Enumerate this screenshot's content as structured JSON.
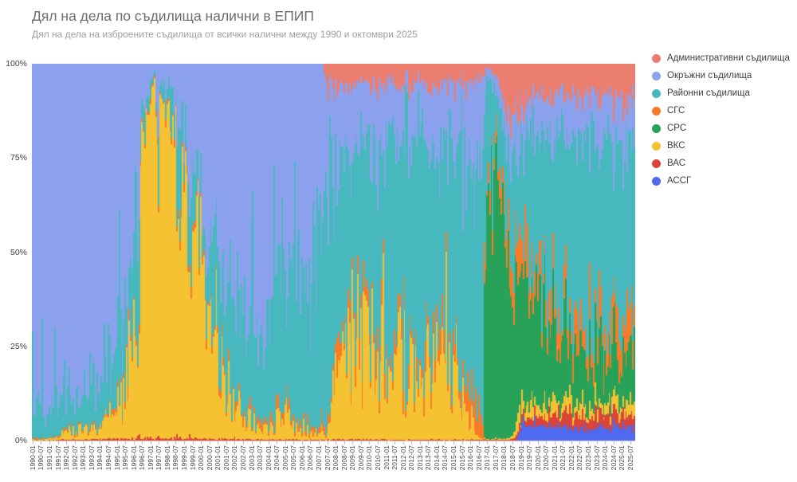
{
  "header": {
    "title": "Дял на дела по съдилища налични в ЕПИП",
    "subtitle": "Дял на дела на изброените съдилища от всички налични между 1990 и октомври 2025"
  },
  "chart_data": {
    "type": "area",
    "variant": "100%-stacked-monthly-bars",
    "title": "Дял на дела по съдилища налични в ЕПИП",
    "subtitle": "Дял на дела на изброените съдилища от всички налични между 1990 и октомври 2025",
    "x_range": [
      "1990-01",
      "2025-10"
    ],
    "n_months": 430,
    "sample_interval_months": 6,
    "grid": false,
    "legend_position": "right",
    "y_ticks": [
      "0%",
      "25%",
      "50%",
      "75%",
      "100%"
    ],
    "ylim": [
      0,
      100
    ],
    "x_tick_labels": [
      "1990-01",
      "1990-07",
      "1991-01",
      "1991-07",
      "1992-01",
      "1992-07",
      "1993-01",
      "1993-07",
      "1994-01",
      "1994-07",
      "1995-01",
      "1995-07",
      "1996-01",
      "1996-07",
      "1997-01",
      "1997-07",
      "1998-01",
      "1998-07",
      "1999-01",
      "1999-07",
      "2000-01",
      "2000-07",
      "2001-01",
      "2001-07",
      "2002-01",
      "2002-07",
      "2003-01",
      "2003-07",
      "2004-01",
      "2004-07",
      "2005-01",
      "2005-07",
      "2006-01",
      "2006-07",
      "2007-01",
      "2007-07",
      "2008-01",
      "2008-07",
      "2009-01",
      "2009-07",
      "2010-01",
      "2010-07",
      "2011-01",
      "2011-07",
      "2012-01",
      "2012-07",
      "2013-01",
      "2013-07",
      "2014-01",
      "2014-07",
      "2015-01",
      "2015-07",
      "2016-01",
      "2016-07",
      "2017-01",
      "2017-07",
      "2018-01",
      "2018-07",
      "2019-01",
      "2019-07",
      "2020-01",
      "2020-07",
      "2021-01",
      "2021-07",
      "2022-01",
      "2022-07",
      "2023-01",
      "2023-07",
      "2024-01",
      "2024-07",
      "2025-01",
      "2025-07"
    ],
    "stack_order_bottom_to_top": [
      "АССГ",
      "ВАС",
      "ВКС",
      "СРС",
      "СГС",
      "Районни съдилища",
      "Окръжни съдилища",
      "Административни съдилища"
    ],
    "series": [
      {
        "name": "Административни съдилища",
        "color": "#ec7e70",
        "values_pct": [
          0,
          0,
          0,
          0,
          0,
          0,
          0,
          0,
          0,
          0,
          0,
          0,
          0,
          0,
          0,
          0,
          0,
          0,
          0,
          0,
          0,
          0,
          0,
          0,
          0,
          0,
          0,
          0,
          0,
          0,
          0,
          0,
          0,
          0,
          0,
          7,
          6,
          6.5,
          6,
          6,
          6,
          6,
          5.5,
          5.5,
          6,
          6,
          5.5,
          5.5,
          5.5,
          5.5,
          5,
          5,
          4.5,
          4,
          1,
          3,
          12,
          13,
          10,
          9,
          8.5,
          8.5,
          8.5,
          8.5,
          8.5,
          8.5,
          8.5,
          8.5,
          9,
          9,
          9,
          9
        ]
      },
      {
        "name": "Окръжни съдилища",
        "color": "#8ba1ee",
        "values_pct": [
          90,
          91,
          92,
          90,
          88,
          89,
          86,
          85,
          84,
          82,
          76,
          66,
          52,
          16,
          4,
          8,
          6,
          11,
          16,
          26,
          40,
          47,
          50,
          56,
          55,
          60,
          58,
          64,
          62,
          57,
          58,
          55,
          56,
          58,
          46,
          32,
          20,
          19,
          18,
          17,
          16,
          16,
          15,
          15,
          16,
          16,
          15,
          15,
          14,
          15,
          16,
          18,
          20,
          23,
          2,
          4,
          8,
          8,
          9,
          10,
          11,
          11,
          11,
          11,
          11,
          11,
          11,
          11,
          11,
          11.5,
          12,
          12
        ]
      },
      {
        "name": "Районни съдилища",
        "color": "#47b9be",
        "values_pct": [
          8,
          7,
          6,
          8,
          9,
          8,
          11,
          11,
          12,
          13,
          14,
          18,
          20,
          7,
          3,
          5,
          5,
          8,
          10,
          13,
          20,
          26,
          26,
          30,
          36,
          32,
          37,
          31,
          33,
          36,
          31,
          39,
          40,
          38,
          50,
          59,
          48,
          50,
          44,
          43,
          50,
          52,
          57,
          58,
          56,
          54,
          53,
          54,
          57,
          55,
          57,
          57,
          62,
          64,
          33,
          14,
          18,
          24,
          31,
          36,
          42,
          46,
          48,
          50,
          52,
          53,
          53,
          54,
          54,
          54,
          53,
          51
        ]
      },
      {
        "name": "СГС",
        "color": "#fa7b27",
        "values_pct": [
          0.3,
          0.3,
          0.3,
          0.4,
          0.5,
          0.5,
          0.6,
          0.6,
          0.7,
          0.8,
          1,
          1.2,
          1.5,
          1,
          1,
          1,
          1,
          1.2,
          1.5,
          1.5,
          1.5,
          1.5,
          1.5,
          1.5,
          1.5,
          1.5,
          1.5,
          1.5,
          1.5,
          2,
          2,
          2,
          1.5,
          1.5,
          1.5,
          1.5,
          4,
          4.5,
          5,
          5.5,
          4.5,
          4,
          4,
          4,
          4.5,
          5,
          5,
          4.5,
          4.5,
          4.5,
          5,
          5.5,
          8,
          7,
          5,
          4,
          6,
          8,
          9,
          8,
          7.5,
          7,
          7,
          7,
          7,
          7,
          7,
          7,
          7,
          7.5,
          8,
          11
        ]
      },
      {
        "name": "СРС",
        "color": "#28a258",
        "values_pct": [
          0,
          0,
          0,
          0,
          0,
          0,
          0,
          0,
          0,
          0,
          0,
          0,
          0,
          0,
          0,
          0,
          0,
          0,
          0,
          0,
          0,
          0,
          0,
          0,
          0,
          0,
          0,
          0,
          0,
          0,
          0,
          0,
          0,
          0,
          0,
          0,
          0,
          0,
          0,
          0,
          0,
          0,
          0,
          0,
          0,
          0,
          0,
          0,
          0,
          0,
          0,
          0,
          0,
          0,
          58,
          75,
          60,
          45,
          37,
          32,
          27,
          24,
          22,
          20,
          17,
          15,
          14.5,
          14,
          13.5,
          13,
          12.5,
          12
        ]
      },
      {
        "name": "ВКС",
        "color": "#f5c231",
        "values_pct": [
          0.2,
          0.2,
          0.3,
          0.5,
          1.5,
          2,
          2.5,
          2.5,
          3,
          3.5,
          8,
          14,
          26,
          76,
          91,
          85,
          87,
          79,
          71,
          59,
          37,
          24,
          21,
          11,
          7,
          5.5,
          3.5,
          3.5,
          3.5,
          5,
          9,
          4,
          2.5,
          1.5,
          1.5,
          1.5,
          22,
          20,
          27,
          28,
          23,
          22,
          18,
          17,
          17,
          19,
          21,
          20,
          18.5,
          17.5,
          17,
          14,
          5,
          0.5,
          0.3,
          0.3,
          0.3,
          0.5,
          3.5,
          3.5,
          3.5,
          3.5,
          3,
          3,
          3,
          3,
          3,
          3,
          3,
          3,
          3,
          3
        ]
      },
      {
        "name": "ВАС",
        "color": "#dd4438",
        "values_pct": [
          0.1,
          0.1,
          0.1,
          0.2,
          0.3,
          0.3,
          0.3,
          0.3,
          0.3,
          0.4,
          0.5,
          0.5,
          0.6,
          0.7,
          0.8,
          0.8,
          0.7,
          0.7,
          0.6,
          0.6,
          0.5,
          0.5,
          0.5,
          0.4,
          0.4,
          0.3,
          0.3,
          0.3,
          0.3,
          0.3,
          0.3,
          0.3,
          0.2,
          0.2,
          0.2,
          0.2,
          0.3,
          0.3,
          0.3,
          0.3,
          0.3,
          0.3,
          0.2,
          0.2,
          0.2,
          0.2,
          0.2,
          0.2,
          0.2,
          0.2,
          0.2,
          0.2,
          0.2,
          0.2,
          0.2,
          0.2,
          0.2,
          0.3,
          1.5,
          2,
          2.5,
          2.5,
          3,
          3.5,
          3.5,
          3.5,
          3.5,
          3.5,
          3.5,
          3.5,
          3.5,
          3.5
        ]
      },
      {
        "name": "АССГ",
        "color": "#4d6af0",
        "values_pct": [
          0,
          0,
          0,
          0,
          0,
          0,
          0,
          0,
          0,
          0,
          0,
          0,
          0,
          0,
          0,
          0,
          0,
          0,
          0,
          0,
          0,
          0,
          0,
          0,
          0,
          0,
          0,
          0,
          0,
          0,
          0,
          0,
          0,
          0,
          0,
          0,
          0,
          0,
          0,
          0,
          0,
          0,
          0,
          0,
          0,
          0,
          0,
          0,
          0,
          0,
          0,
          0,
          0,
          0,
          0,
          0,
          0,
          0,
          4,
          4.5,
          4,
          4,
          4,
          4,
          3.5,
          3.5,
          3.5,
          3.5,
          3.5,
          3.5,
          3.5,
          3.5
        ]
      }
    ],
    "legend": [
      {
        "label": "Административни съдилища",
        "color": "#ec7e70"
      },
      {
        "label": "Окръжни съдилища",
        "color": "#8ba1ee"
      },
      {
        "label": "Районни съдилища",
        "color": "#47b9be"
      },
      {
        "label": "СГС",
        "color": "#fa7b27"
      },
      {
        "label": "СРС",
        "color": "#28a258"
      },
      {
        "label": "ВКС",
        "color": "#f5c231"
      },
      {
        "label": "ВАС",
        "color": "#dd4438"
      },
      {
        "label": "АССГ",
        "color": "#4d6af0"
      }
    ],
    "axis_colors": {
      "axis_line": "#cfcfcf",
      "tick": "#b6b6b6",
      "tick_label": "#474747"
    }
  }
}
